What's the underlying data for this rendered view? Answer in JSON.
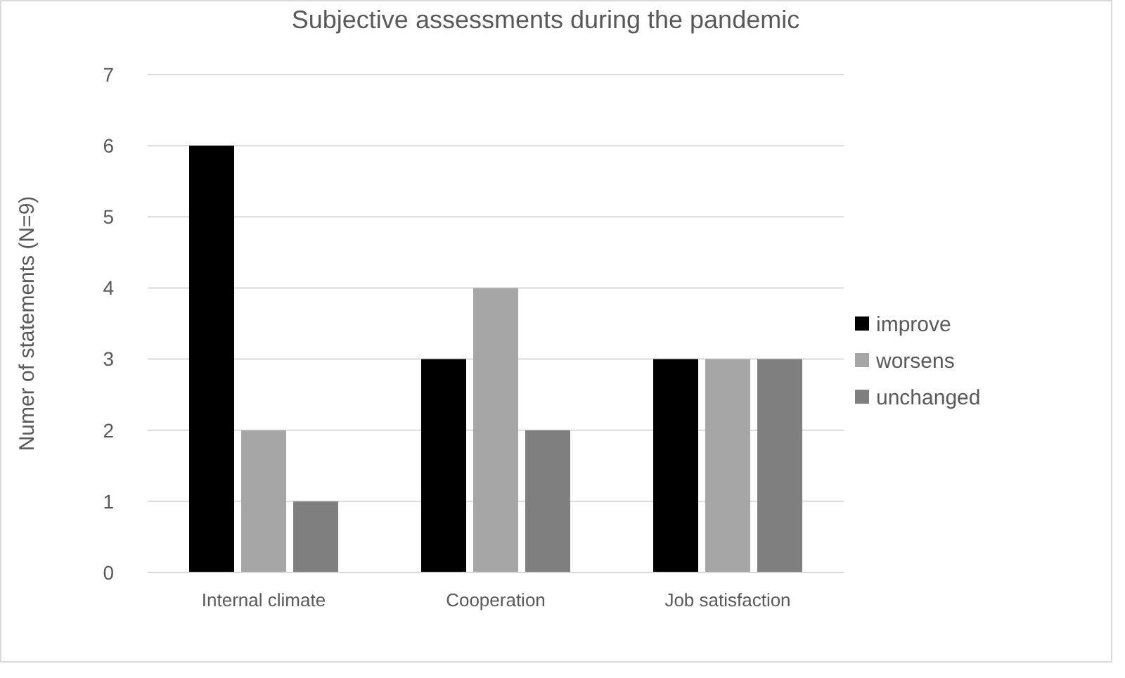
{
  "chart_data": {
    "type": "bar",
    "title": "Subjective assessments during the pandemic",
    "ylabel": "Numer of statements (N=9)",
    "categories": [
      "Internal climate",
      "Cooperation",
      "Job satisfaction"
    ],
    "series": [
      {
        "name": "improve",
        "color": "#000000",
        "values": [
          6,
          3,
          3
        ]
      },
      {
        "name": "worsens",
        "color": "#a6a6a6",
        "values": [
          2,
          4,
          3
        ]
      },
      {
        "name": "unchanged",
        "color": "#7f7f7f",
        "values": [
          1,
          2,
          3
        ]
      }
    ],
    "ylim": [
      0,
      7
    ],
    "yticks": [
      0,
      1,
      2,
      3,
      4,
      5,
      6,
      7
    ],
    "grid": "y",
    "legend": "right"
  }
}
